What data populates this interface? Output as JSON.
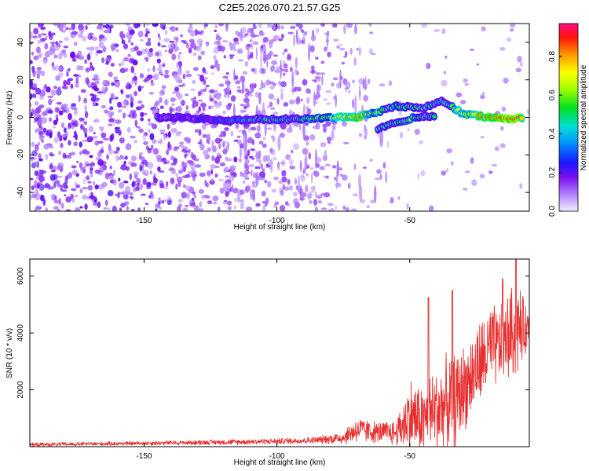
{
  "title": "C2E5.2026.070.21.57.G25",
  "chart_data": [
    {
      "type": "heatmap",
      "name": "spectrogram",
      "title": "C2E5.2026.070.21.57.G25",
      "xlabel": "Height of straight line (km)",
      "ylabel": "Frequency (Hz)",
      "xlim": [
        -193,
        -5
      ],
      "ylim": [
        -50,
        50
      ],
      "xticks": [
        -150,
        -100,
        -50
      ],
      "yticks": [
        -40,
        -20,
        0,
        20,
        40
      ],
      "colorbar": {
        "label": "Normalized spectral amplitude",
        "range": [
          0,
          0.97
        ],
        "ticks": [
          0.0,
          0.2,
          0.4,
          0.6,
          0.8
        ]
      },
      "signal_track": {
        "description_units": "height km, frequency Hz, normalized amplitude",
        "main_branch": [
          {
            "x": -145,
            "f": 0,
            "a": 0.15
          },
          {
            "x": -135,
            "f": 0,
            "a": 0.2
          },
          {
            "x": -120,
            "f": -2,
            "a": 0.25
          },
          {
            "x": -110,
            "f": -1,
            "a": 0.4
          },
          {
            "x": -100,
            "f": -1,
            "a": 0.45
          },
          {
            "x": -90,
            "f": -1,
            "a": 0.5
          },
          {
            "x": -80,
            "f": 0,
            "a": 0.6
          },
          {
            "x": -70,
            "f": 0,
            "a": 0.85
          },
          {
            "x": -62,
            "f": 3,
            "a": 0.6
          },
          {
            "x": -55,
            "f": 6,
            "a": 0.5
          },
          {
            "x": -45,
            "f": 5,
            "a": 0.55
          },
          {
            "x": -38,
            "f": 9,
            "a": 0.45
          },
          {
            "x": -30,
            "f": 2,
            "a": 0.7
          },
          {
            "x": -20,
            "f": 0,
            "a": 0.85
          },
          {
            "x": -10,
            "f": -1,
            "a": 0.9
          },
          {
            "x": -7,
            "f": 0,
            "a": 0.85
          }
        ],
        "lower_branch": [
          {
            "x": -62,
            "f": -6,
            "a": 0.45
          },
          {
            "x": -55,
            "f": -3,
            "a": 0.5
          },
          {
            "x": -48,
            "f": 0,
            "a": 0.55
          },
          {
            "x": -40,
            "f": 1,
            "a": 0.5
          }
        ]
      }
    },
    {
      "type": "line",
      "name": "snr",
      "xlabel": "Height of straight line (km)",
      "ylabel": "SNR (10 * v/v)",
      "xlim": [
        -193,
        -5
      ],
      "ylim": [
        0,
        6600
      ],
      "xticks": [
        -150,
        -100,
        -50
      ],
      "yticks": [
        2000,
        4000,
        6000
      ],
      "color": "#e83030",
      "envelope": {
        "x": [
          -193,
          -150,
          -120,
          -100,
          -85,
          -75,
          -70,
          -62,
          -55,
          -50,
          -45,
          -40,
          -33,
          -28,
          -20,
          -15,
          -10,
          -7,
          -5
        ],
        "center": [
          70,
          120,
          160,
          190,
          230,
          320,
          600,
          500,
          500,
          1100,
          900,
          1300,
          1600,
          2300,
          3400,
          3600,
          4200,
          4100,
          4300
        ],
        "spread": [
          60,
          70,
          90,
          100,
          120,
          220,
          450,
          350,
          450,
          1300,
          1200,
          1500,
          1600,
          1400,
          1500,
          1300,
          1700,
          1000,
          500
        ]
      },
      "peaks": [
        {
          "x": -43,
          "y": 5250
        },
        {
          "x": -34,
          "y": 5500
        },
        {
          "x": -15,
          "y": 5900
        },
        {
          "x": -10,
          "y": 6600
        }
      ]
    }
  ]
}
